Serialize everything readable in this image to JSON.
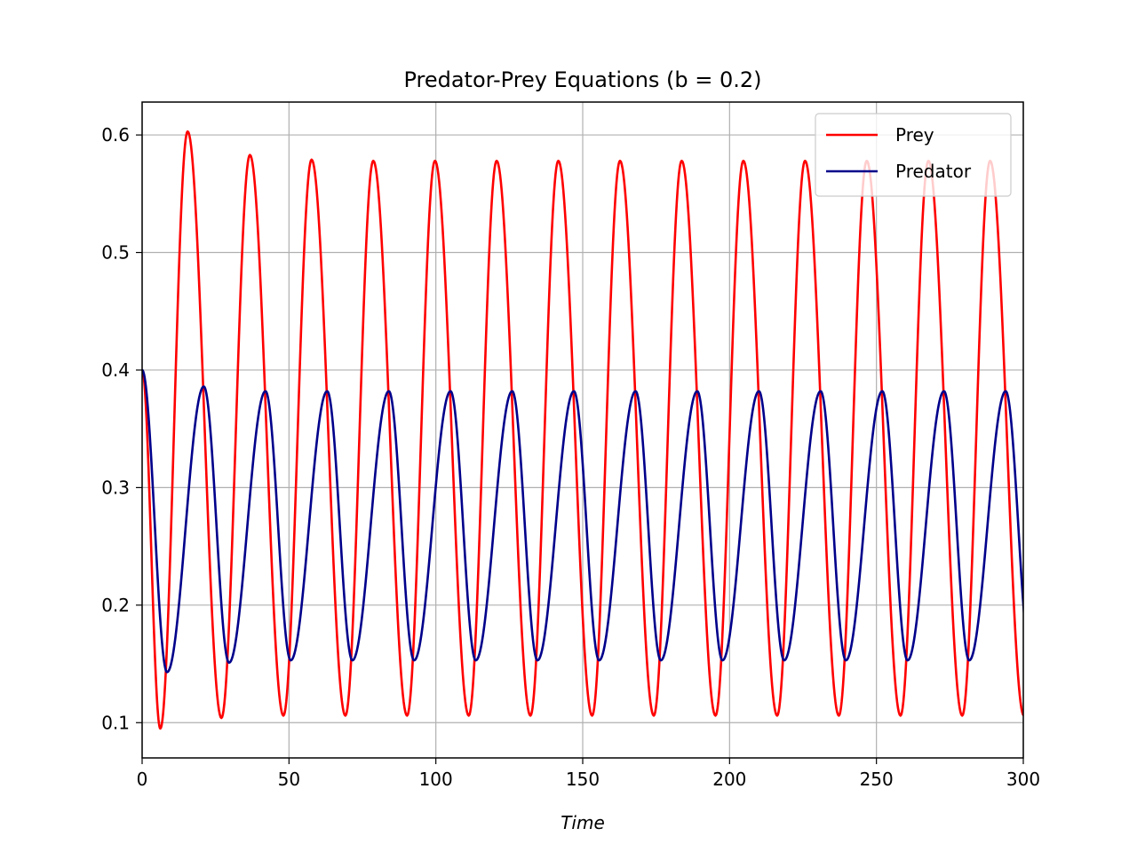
{
  "chart_data": {
    "type": "line",
    "title": "Predator-Prey Equations (b = 0.2)",
    "xlabel": "Time",
    "ylabel": "",
    "xlim": [
      0,
      300
    ],
    "ylim": [
      0.07,
      0.628
    ],
    "xticks": [
      0,
      50,
      100,
      150,
      200,
      250,
      300
    ],
    "xtick_labels": [
      "0",
      "50",
      "100",
      "150",
      "200",
      "250",
      "300"
    ],
    "yticks": [
      0.1,
      0.2,
      0.3,
      0.4,
      0.5,
      0.6
    ],
    "ytick_labels": [
      "0.1",
      "0.2",
      "0.3",
      "0.4",
      "0.5",
      "0.6"
    ],
    "grid": true,
    "legend_position": "top-right",
    "series": [
      {
        "name": "Prey",
        "color": "#ff0000",
        "x": [
          0,
          6.2,
          15.5,
          27.0,
          36.7,
          48.1,
          57.7,
          69.2,
          78.7,
          90.2,
          99.7,
          111.2,
          120.7,
          132.2,
          141.7,
          153.2,
          162.7,
          174.2,
          183.7,
          195.2,
          204.7,
          216.2,
          225.7,
          237.2,
          246.7,
          258.2,
          267.7,
          279.2,
          288.7,
          300.2
        ],
        "values": [
          0.4,
          0.095,
          0.603,
          0.104,
          0.583,
          0.106,
          0.579,
          0.106,
          0.578,
          0.106,
          0.578,
          0.106,
          0.578,
          0.106,
          0.578,
          0.106,
          0.578,
          0.106,
          0.578,
          0.106,
          0.578,
          0.106,
          0.578,
          0.106,
          0.578,
          0.106,
          0.578,
          0.106,
          0.578,
          0.106
        ]
      },
      {
        "name": "Predator",
        "color": "#00008b",
        "x": [
          0,
          8.5,
          21.0,
          29.6,
          42.0,
          50.6,
          63.0,
          71.6,
          84.0,
          92.6,
          105.0,
          113.6,
          126.0,
          134.6,
          147.0,
          155.6,
          168.0,
          176.6,
          189.0,
          197.6,
          210.0,
          218.6,
          231.0,
          239.6,
          252.0,
          260.6,
          273.0,
          281.6,
          294.0,
          302.6
        ],
        "values": [
          0.4,
          0.143,
          0.386,
          0.151,
          0.382,
          0.153,
          0.382,
          0.153,
          0.382,
          0.153,
          0.382,
          0.153,
          0.382,
          0.153,
          0.382,
          0.153,
          0.382,
          0.153,
          0.382,
          0.153,
          0.382,
          0.153,
          0.382,
          0.153,
          0.382,
          0.153,
          0.382,
          0.153,
          0.382,
          0.153
        ]
      }
    ]
  }
}
